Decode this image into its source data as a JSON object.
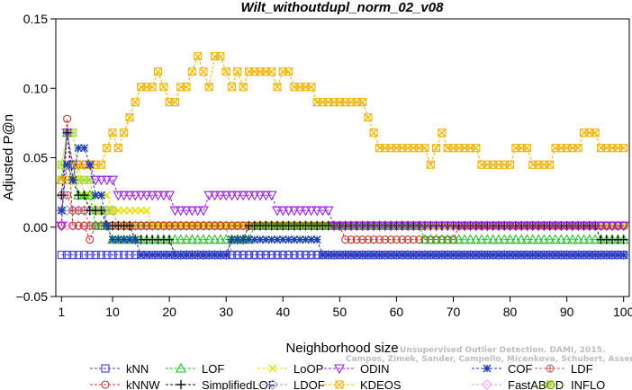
{
  "chart_data": {
    "type": "line",
    "title": "Wilt_withoutdupl_norm_02_v08",
    "xlabel": "Neighborhood size",
    "ylabel": "Adjusted P@n",
    "xlim": [
      0,
      101
    ],
    "ylim": [
      -0.05,
      0.15
    ],
    "xticks": [
      1,
      10,
      20,
      30,
      40,
      50,
      60,
      70,
      80,
      90,
      100
    ],
    "xtick_labels": [
      "1",
      "10",
      "20",
      "30",
      "40",
      "50",
      "60",
      "70",
      "80",
      "90",
      "100"
    ],
    "yticks": [
      -0.05,
      0.0,
      0.05,
      0.1,
      0.15
    ],
    "ytick_labels": [
      "−0.05",
      "0.00",
      "0.05",
      "0.10",
      "0.15"
    ],
    "grid": false,
    "legend_position": "bottom",
    "watermark": [
      "Unsupervised Outlier Detection. DAMI, 2015.",
      "Campos, Zimek, Sander, Campello, Micenkova, Schubert, Assent, Houle"
    ],
    "series": [
      {
        "name": "kNN",
        "color": "#3b3bd8",
        "marker": "square",
        "segments": [
          {
            "from": 1,
            "to": 100,
            "value": -0.02
          }
        ]
      },
      {
        "name": "kNNW",
        "color": "#c8322c",
        "marker": "circle",
        "segments": [
          {
            "from": 1,
            "to": 1,
            "value": 0.001
          },
          {
            "from": 2,
            "to": 2,
            "value": 0.078
          },
          {
            "from": 3,
            "to": 5,
            "value": 0.001
          },
          {
            "from": 6,
            "to": 6,
            "value": -0.009
          },
          {
            "from": 7,
            "to": 50,
            "value": 0.001
          },
          {
            "from": 51,
            "to": 70,
            "value": -0.009
          },
          {
            "from": 71,
            "to": 100,
            "value": 0.001
          }
        ]
      },
      {
        "name": "LOF",
        "color": "#22c322",
        "marker": "triangle",
        "segments": [
          {
            "from": 1,
            "to": 1,
            "value": 0.034
          },
          {
            "from": 2,
            "to": 2,
            "value": 0.068
          },
          {
            "from": 3,
            "to": 3,
            "value": 0.045
          },
          {
            "from": 4,
            "to": 6,
            "value": 0.023
          },
          {
            "from": 7,
            "to": 9,
            "value": 0.001
          },
          {
            "from": 10,
            "to": 34,
            "value": -0.009
          },
          {
            "from": 35,
            "to": 64,
            "value": 0.001
          },
          {
            "from": 65,
            "to": 100,
            "value": -0.009
          }
        ]
      },
      {
        "name": "SimplifiedLOF",
        "color": "#111111",
        "marker": "plus",
        "segments": [
          {
            "from": 1,
            "to": 1,
            "value": 0.023
          },
          {
            "from": 2,
            "to": 2,
            "value": 0.068
          },
          {
            "from": 3,
            "to": 3,
            "value": 0.034
          },
          {
            "from": 4,
            "to": 5,
            "value": 0.023
          },
          {
            "from": 6,
            "to": 8,
            "value": 0.012
          },
          {
            "from": 9,
            "to": 13,
            "value": 0.001
          },
          {
            "from": 14,
            "to": 20,
            "value": -0.009
          },
          {
            "from": 21,
            "to": 30,
            "value": -0.02
          },
          {
            "from": 31,
            "to": 33,
            "value": -0.009
          },
          {
            "from": 34,
            "to": 95,
            "value": 0.001
          },
          {
            "from": 96,
            "to": 100,
            "value": -0.009
          }
        ]
      },
      {
        "name": "LoOP",
        "color": "#e6dd00",
        "marker": "x",
        "segments": [
          {
            "from": 1,
            "to": 1,
            "value": 0.012
          },
          {
            "from": 2,
            "to": 4,
            "value": 0.045
          },
          {
            "from": 5,
            "to": 9,
            "value": 0.023
          },
          {
            "from": 10,
            "to": 16,
            "value": 0.012
          },
          {
            "from": 17,
            "to": 100,
            "value": 0.001
          }
        ]
      },
      {
        "name": "LDOF",
        "color": "#9b9be0",
        "marker": "diamond",
        "segments": [
          {
            "from": 1,
            "to": 10,
            "value": 0.012
          },
          {
            "from": 11,
            "to": 30,
            "value": 0.001
          },
          {
            "from": 31,
            "to": 100,
            "value": -0.02
          }
        ]
      },
      {
        "name": "ODIN",
        "color": "#9a1ee6",
        "marker": "triangle-down",
        "segments": [
          {
            "from": 1,
            "to": 1,
            "value": 0.001
          },
          {
            "from": 2,
            "to": 2,
            "value": 0.068
          },
          {
            "from": 3,
            "to": 6,
            "value": 0.045
          },
          {
            "from": 7,
            "to": 10,
            "value": 0.034
          },
          {
            "from": 11,
            "to": 14,
            "value": 0.023
          },
          {
            "from": 15,
            "to": 20,
            "value": 0.023
          },
          {
            "from": 21,
            "to": 26,
            "value": 0.012
          },
          {
            "from": 27,
            "to": 31,
            "value": 0.023
          },
          {
            "from": 32,
            "to": 38,
            "value": 0.023
          },
          {
            "from": 39,
            "to": 48,
            "value": 0.012
          },
          {
            "from": 49,
            "to": 100,
            "value": 0.001
          }
        ]
      },
      {
        "name": "KDEOS",
        "color": "#f0b400",
        "marker": "square-x",
        "segments": [
          {
            "from": 1,
            "to": 3,
            "value": 0.034
          },
          {
            "from": 4,
            "to": 6,
            "value": 0.045
          },
          {
            "from": 7,
            "to": 8,
            "value": 0.045
          },
          {
            "from": 9,
            "to": 9,
            "value": 0.057
          },
          {
            "from": 10,
            "to": 10,
            "value": 0.068
          },
          {
            "from": 11,
            "to": 11,
            "value": 0.057
          },
          {
            "from": 12,
            "to": 12,
            "value": 0.068
          },
          {
            "from": 13,
            "to": 13,
            "value": 0.079
          },
          {
            "from": 14,
            "to": 14,
            "value": 0.09
          },
          {
            "from": 15,
            "to": 17,
            "value": 0.101
          },
          {
            "from": 18,
            "to": 18,
            "value": 0.112
          },
          {
            "from": 19,
            "to": 19,
            "value": 0.101
          },
          {
            "from": 20,
            "to": 21,
            "value": 0.09
          },
          {
            "from": 22,
            "to": 23,
            "value": 0.101
          },
          {
            "from": 24,
            "to": 24,
            "value": 0.112
          },
          {
            "from": 25,
            "to": 25,
            "value": 0.123
          },
          {
            "from": 26,
            "to": 26,
            "value": 0.112
          },
          {
            "from": 27,
            "to": 27,
            "value": 0.101
          },
          {
            "from": 28,
            "to": 29,
            "value": 0.123
          },
          {
            "from": 30,
            "to": 30,
            "value": 0.112
          },
          {
            "from": 31,
            "to": 31,
            "value": 0.101
          },
          {
            "from": 32,
            "to": 32,
            "value": 0.112
          },
          {
            "from": 33,
            "to": 33,
            "value": 0.101
          },
          {
            "from": 34,
            "to": 34,
            "value": 0.112
          },
          {
            "from": 35,
            "to": 38,
            "value": 0.112
          },
          {
            "from": 39,
            "to": 39,
            "value": 0.101
          },
          {
            "from": 40,
            "to": 41,
            "value": 0.112
          },
          {
            "from": 42,
            "to": 45,
            "value": 0.101
          },
          {
            "from": 46,
            "to": 54,
            "value": 0.09
          },
          {
            "from": 55,
            "to": 55,
            "value": 0.079
          },
          {
            "from": 56,
            "to": 56,
            "value": 0.068
          },
          {
            "from": 57,
            "to": 65,
            "value": 0.057
          },
          {
            "from": 66,
            "to": 66,
            "value": 0.045
          },
          {
            "from": 67,
            "to": 67,
            "value": 0.057
          },
          {
            "from": 68,
            "to": 68,
            "value": 0.068
          },
          {
            "from": 69,
            "to": 74,
            "value": 0.057
          },
          {
            "from": 75,
            "to": 80,
            "value": 0.045
          },
          {
            "from": 81,
            "to": 83,
            "value": 0.057
          },
          {
            "from": 84,
            "to": 87,
            "value": 0.045
          },
          {
            "from": 88,
            "to": 92,
            "value": 0.057
          },
          {
            "from": 93,
            "to": 95,
            "value": 0.068
          },
          {
            "from": 96,
            "to": 100,
            "value": 0.057
          }
        ]
      },
      {
        "name": "COF",
        "color": "#1c3fae",
        "marker": "asterisk",
        "segments": [
          {
            "from": 1,
            "to": 1,
            "value": 0.012
          },
          {
            "from": 2,
            "to": 2,
            "value": 0.045
          },
          {
            "from": 3,
            "to": 3,
            "value": 0.034
          },
          {
            "from": 4,
            "to": 5,
            "value": 0.057
          },
          {
            "from": 6,
            "to": 6,
            "value": 0.045
          },
          {
            "from": 7,
            "to": 8,
            "value": 0.023
          },
          {
            "from": 9,
            "to": 9,
            "value": 0.001
          },
          {
            "from": 10,
            "to": 14,
            "value": -0.009
          },
          {
            "from": 15,
            "to": 30,
            "value": -0.02
          },
          {
            "from": 31,
            "to": 46,
            "value": -0.009
          },
          {
            "from": 47,
            "to": 100,
            "value": -0.02
          }
        ]
      },
      {
        "name": "FastABOD",
        "color": "#ee9aee",
        "marker": "diamond",
        "segments": [
          {
            "from": 1,
            "to": 100,
            "value": 0.001
          }
        ]
      },
      {
        "name": "LDF",
        "color": "#c06060",
        "marker": "circle-plus",
        "segments": [
          {
            "from": 1,
            "to": 2,
            "value": 0.023
          },
          {
            "from": 3,
            "to": 5,
            "value": 0.012
          },
          {
            "from": 6,
            "to": 100,
            "value": 0.001
          }
        ]
      },
      {
        "name": "INFLO",
        "color": "#a8d63a",
        "marker": "star",
        "segments": [
          {
            "from": 1,
            "to": 1,
            "value": 0.045
          },
          {
            "from": 2,
            "to": 3,
            "value": 0.068
          },
          {
            "from": 4,
            "to": 6,
            "value": 0.034
          },
          {
            "from": 7,
            "to": 10,
            "value": 0.012
          },
          {
            "from": 11,
            "to": 100,
            "value": 0.001
          }
        ]
      }
    ],
    "legend_order": [
      "kNN",
      "kNNW",
      "LOF",
      "SimplifiedLOF",
      "LoOP",
      "LDOF",
      "ODIN",
      "KDEOS",
      "COF",
      "FastABOD",
      "LDF",
      "INFLO"
    ]
  }
}
